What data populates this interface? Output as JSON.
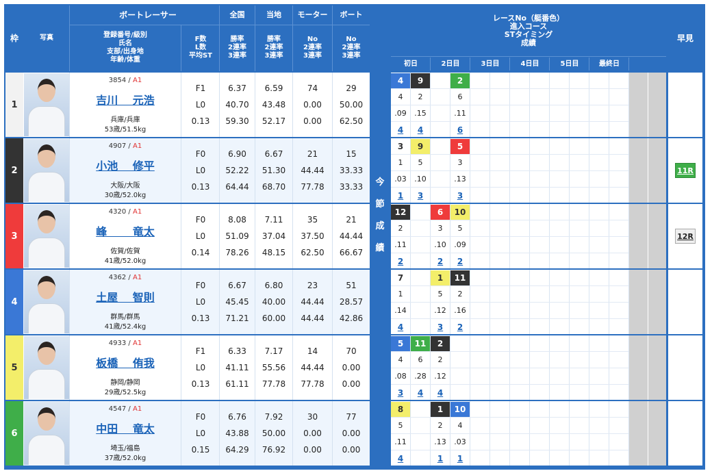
{
  "headers": {
    "frame": "枠",
    "photo": "写真",
    "racer": "ボートレーサー",
    "racer_sub": [
      "登録番号/級別",
      "氏名",
      "支部/出身地",
      "年齢/体重"
    ],
    "fst": [
      "F数",
      "L数",
      "平均ST"
    ],
    "national": "全国",
    "local": "当地",
    "motor": "モーター",
    "boat": "ボート",
    "rate_sub": [
      "勝率",
      "2連率",
      "3連率"
    ],
    "no_sub": [
      "No",
      "2連率",
      "3連率"
    ],
    "race_info": [
      "レースNo（艇番色）",
      "進入コース",
      "STタイミング",
      "成績"
    ],
    "days": [
      "初日",
      "2日目",
      "3日目",
      "4日目",
      "5日目",
      "最終日"
    ],
    "hayami": "早見",
    "konsetsu": [
      "今",
      "節",
      "成",
      "績"
    ]
  },
  "colors": {
    "frame": [
      "#ffffff",
      "#333333",
      "#ef3b3b",
      "#3a78d6",
      "#f3ee6a",
      "#3fae49"
    ],
    "frame_text": [
      "#333333",
      "#ffffff",
      "#ffffff",
      "#ffffff",
      "#333333",
      "#ffffff"
    ]
  },
  "racers": [
    {
      "frame": "1",
      "reg": "3854",
      "cls": "A1",
      "name": "吉川　 元浩",
      "branch": "兵庫/兵庫",
      "age": "53歳/51.5kg",
      "f": "F1",
      "l": "L0",
      "st": "0.13",
      "nat": [
        "6.37",
        "40.70",
        "59.30"
      ],
      "loc": [
        "6.59",
        "43.48",
        "52.17"
      ],
      "mot": [
        "74",
        "0.00",
        "0.00"
      ],
      "boat": [
        "29",
        "50.00",
        "62.50"
      ],
      "races": [
        {
          "r": "4",
          "c": "4",
          "st": ".09",
          "res": "4"
        },
        {
          "r": "9",
          "c": "2",
          "st": ".15",
          "res": "4"
        },
        {
          "r": "",
          "c": "",
          "st": "",
          "res": ""
        },
        {
          "r": "2",
          "c": "6",
          "st": ".11",
          "res": "6"
        }
      ],
      "hayami": ""
    },
    {
      "frame": "2",
      "reg": "4907",
      "cls": "A1",
      "name": "小池　 修平",
      "branch": "大阪/大阪",
      "age": "30歳/52.0kg",
      "f": "F0",
      "l": "L0",
      "st": "0.13",
      "nat": [
        "6.90",
        "52.22",
        "64.44"
      ],
      "loc": [
        "6.67",
        "51.30",
        "68.70"
      ],
      "mot": [
        "21",
        "44.44",
        "77.78"
      ],
      "boat": [
        "15",
        "33.33",
        "33.33"
      ],
      "races": [
        {
          "r": "3",
          "c": "1",
          "st": ".03",
          "res": "1"
        },
        {
          "r": "9",
          "c": "5",
          "st": ".10",
          "res": "3"
        },
        {
          "r": "",
          "c": "",
          "st": "",
          "res": ""
        },
        {
          "r": "5",
          "c": "3",
          "st": ".13",
          "res": "3"
        }
      ],
      "hayami": "11R"
    },
    {
      "frame": "3",
      "reg": "4320",
      "cls": "A1",
      "name": "峰　　 竜太",
      "branch": "佐賀/佐賀",
      "age": "41歳/52.0kg",
      "f": "F0",
      "l": "L0",
      "st": "0.14",
      "nat": [
        "8.08",
        "51.09",
        "78.26"
      ],
      "loc": [
        "7.11",
        "37.04",
        "48.15"
      ],
      "mot": [
        "35",
        "37.50",
        "62.50"
      ],
      "boat": [
        "21",
        "44.44",
        "66.67"
      ],
      "races": [
        {
          "r": "12",
          "c": "2",
          "st": ".11",
          "res": "2"
        },
        {
          "r": "",
          "c": "",
          "st": "",
          "res": ""
        },
        {
          "r": "6",
          "c": "3",
          "st": ".10",
          "res": "2"
        },
        {
          "r": "10",
          "c": "5",
          "st": ".09",
          "res": "2"
        }
      ],
      "hayami": "12R"
    },
    {
      "frame": "4",
      "reg": "4362",
      "cls": "A1",
      "name": "土屋　 智則",
      "branch": "群馬/群馬",
      "age": "41歳/52.4kg",
      "f": "F0",
      "l": "L0",
      "st": "0.13",
      "nat": [
        "6.67",
        "45.45",
        "71.21"
      ],
      "loc": [
        "6.80",
        "40.00",
        "60.00"
      ],
      "mot": [
        "23",
        "44.44",
        "44.44"
      ],
      "boat": [
        "51",
        "28.57",
        "42.86"
      ],
      "races": [
        {
          "r": "7",
          "c": "1",
          "st": ".14",
          "res": "4"
        },
        {
          "r": "",
          "c": "",
          "st": "",
          "res": ""
        },
        {
          "r": "1",
          "c": "5",
          "st": ".12",
          "res": "3"
        },
        {
          "r": "11",
          "c": "2",
          "st": ".16",
          "res": "2"
        }
      ],
      "hayami": ""
    },
    {
      "frame": "5",
      "reg": "4933",
      "cls": "A1",
      "name": "板橋　 侑我",
      "branch": "静岡/静岡",
      "age": "29歳/52.5kg",
      "f": "F1",
      "l": "L0",
      "st": "0.13",
      "nat": [
        "6.33",
        "41.11",
        "61.11"
      ],
      "loc": [
        "7.17",
        "55.56",
        "77.78"
      ],
      "mot": [
        "14",
        "44.44",
        "77.78"
      ],
      "boat": [
        "70",
        "0.00",
        "0.00"
      ],
      "races": [
        {
          "r": "5",
          "c": "4",
          "st": ".08",
          "res": "3"
        },
        {
          "r": "11",
          "c": "6",
          "st": ".28",
          "res": "4"
        },
        {
          "r": "2",
          "c": "2",
          "st": ".12",
          "res": "4"
        },
        {
          "r": "",
          "c": "",
          "st": "",
          "res": ""
        }
      ],
      "hayami": ""
    },
    {
      "frame": "6",
      "reg": "4547",
      "cls": "A1",
      "name": "中田　 竜太",
      "branch": "埼玉/福島",
      "age": "37歳/52.0kg",
      "f": "F0",
      "l": "L0",
      "st": "0.15",
      "nat": [
        "6.76",
        "43.88",
        "64.29"
      ],
      "loc": [
        "7.92",
        "50.00",
        "76.92"
      ],
      "mot": [
        "30",
        "0.00",
        "0.00"
      ],
      "boat": [
        "77",
        "0.00",
        "0.00"
      ],
      "races": [
        {
          "r": "8",
          "c": "5",
          "st": ".11",
          "res": "4"
        },
        {
          "r": "",
          "c": "",
          "st": "",
          "res": ""
        },
        {
          "r": "1",
          "c": "2",
          "st": ".13",
          "res": "1"
        },
        {
          "r": "10",
          "c": "4",
          "st": ".03",
          "res": "1"
        }
      ],
      "hayami": ""
    }
  ]
}
